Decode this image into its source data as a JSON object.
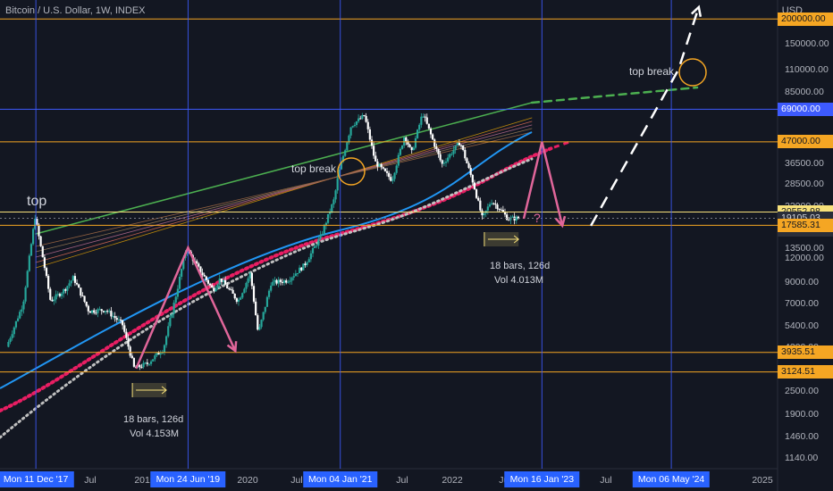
{
  "header": {
    "symbol": "Bitcoin / U.S. Dollar, 1W, INDEX",
    "currency": "USD"
  },
  "price_axis": {
    "ticks": [
      "150000.00",
      "110000.00",
      "85000.00",
      "47000.00",
      "36500.00",
      "28500.00",
      "22000.00",
      "17500.00",
      "13500.00",
      "12000.00",
      "9000.00",
      "7000.00",
      "5400.00",
      "4200.00",
      "3200.00",
      "2500.00",
      "1900.00",
      "1460.00",
      "1140.00"
    ],
    "labels": [
      {
        "text": "200000.00",
        "kind": "orange"
      },
      {
        "text": "69000.00",
        "kind": "blue"
      },
      {
        "text": "47000.00",
        "kind": "orange"
      },
      {
        "text": "20552.98",
        "kind": "yellow"
      },
      {
        "text": "19105.03",
        "kind": "dark"
      },
      {
        "text": "4d 5h",
        "kind": "dark"
      },
      {
        "text": "17585.31",
        "kind": "orange"
      },
      {
        "text": "3935.51",
        "kind": "orange"
      },
      {
        "text": "3124.51",
        "kind": "orange"
      }
    ]
  },
  "time_axis": {
    "ticks": [
      "Jul",
      "2019",
      "2020",
      "Jul",
      "Jul",
      "2022",
      "Jul",
      "Jul",
      "202",
      "2025"
    ],
    "highlights": [
      "Mon 11 Dec '17",
      "Mon 24 Jun '19",
      "Mon 04 Jan '21",
      "Mon 16 Jan '23",
      "Mon 06 May '24"
    ]
  },
  "annotations": {
    "top": "top",
    "top_break_1": "top break",
    "top_break_2": "top break",
    "question": "?",
    "range1_bars": "18 bars, 126d",
    "range1_vol": "Vol 4.153M",
    "range2_bars": "18 bars, 126d",
    "range2_vol": "Vol 4.013M"
  },
  "colors": {
    "background": "#131722",
    "up": "#26a69a",
    "down": "#ffffff",
    "orange_level": "#f5a623",
    "yellow_level": "#f7e17a",
    "blue_level": "#3d5afe",
    "pink_arrow": "#e0669a",
    "green_trend": "#4caf50",
    "blue_band": "#2196f3",
    "pink_dots": "#e91e63",
    "grey_dots": "#c0c0c0"
  },
  "chart_data": {
    "type": "line",
    "title": "Bitcoin / U.S. Dollar, 1W, INDEX",
    "y_scale": "log",
    "ylabel": "USD",
    "ylim": [
      1000,
      250000
    ],
    "xlim": [
      "2017-08-01",
      "2025-06-01"
    ],
    "series": [
      {
        "name": "",
        "x": [
          "2017-09-01",
          "2017-11-01",
          "2017-12-15",
          "2018-01-15",
          "2018-02-10",
          "2018-04-01",
          "2018-05-05",
          "2018-07-01",
          "2018-09-01",
          "2018-11-01",
          "2018-12-15",
          "2019-02-01",
          "2019-04-01",
          "2019-05-20",
          "2019-06-24",
          "2019-08-01",
          "2019-10-01",
          "2019-10-27",
          "2020-01-01",
          "2020-02-15",
          "2020-03-15",
          "2020-05-01",
          "2020-07-01",
          "2020-09-01",
          "2020-11-01",
          "2020-12-20",
          "2021-01-04",
          "2021-02-20",
          "2021-04-10",
          "2021-05-20",
          "2021-07-20",
          "2021-09-05",
          "2021-09-30",
          "2021-11-10",
          "2022-01-20",
          "2022-03-28",
          "2022-05-15",
          "2022-06-18",
          "2022-07-20",
          "2022-08-15",
          "2022-09-20",
          "2022-10-25"
        ],
        "values": [
          4200,
          7000,
          19500,
          11500,
          7200,
          8200,
          9500,
          6400,
          6500,
          5500,
          3250,
          3450,
          4100,
          8000,
          13500,
          11000,
          8200,
          9400,
          7200,
          10000,
          4900,
          8900,
          9200,
          11000,
          15500,
          24000,
          32000,
          57000,
          64000,
          37000,
          30000,
          51000,
          41000,
          66000,
          36000,
          47000,
          29000,
          19000,
          23500,
          21800,
          19000,
          19100
        ]
      }
    ],
    "horizontal_levels": [
      {
        "value": 200000,
        "label": "200000.00",
        "color": "orange"
      },
      {
        "value": 69000,
        "label": "69000.00",
        "color": "blue"
      },
      {
        "value": 47000,
        "label": "47000.00",
        "color": "orange"
      },
      {
        "value": 20552.98,
        "label": "20552.98",
        "color": "yellow"
      },
      {
        "value": 19105.03,
        "label": "19105.03",
        "color": "grey"
      },
      {
        "value": 17585.31,
        "label": "17585.31",
        "color": "orange"
      },
      {
        "value": 3935.51,
        "label": "3935.51",
        "color": "orange"
      },
      {
        "value": 3124.51,
        "label": "3124.51",
        "color": "orange"
      }
    ],
    "vertical_markers": [
      "2017-12-11",
      "2019-06-24",
      "2021-01-04",
      "2023-01-16",
      "2024-05-06"
    ],
    "projection_arrows": [
      {
        "x": [
          "2018-12-15",
          "2019-06-24",
          "2019-12-15"
        ],
        "values": [
          3250,
          13500,
          4000
        ]
      },
      {
        "x": [
          "2022-11-10",
          "2023-01-16",
          "2023-04-01"
        ],
        "values": [
          19000,
          47000,
          17500
        ]
      },
      {
        "x": [
          "2023-07-15",
          "2024-06-01",
          "2024-08-15"
        ],
        "values": [
          17500,
          110000,
          230000
        ],
        "style": "dashed"
      }
    ],
    "ranges": [
      {
        "label": "18 bars, 126d",
        "vol": "Vol 4.153M",
        "from": "2018-12-01",
        "to": "2019-04-05"
      },
      {
        "label": "18 bars, 126d",
        "vol": "Vol 4.013M",
        "from": "2022-06-18",
        "to": "2022-10-22"
      }
    ]
  }
}
